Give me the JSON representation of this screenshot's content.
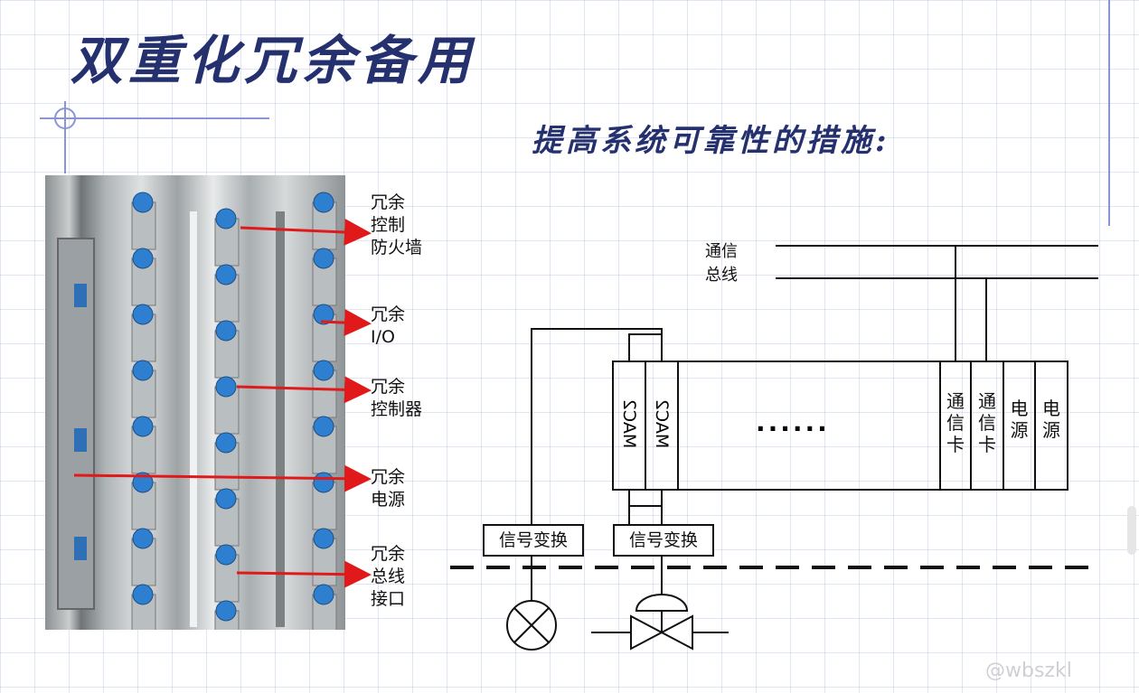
{
  "title": "双重化冗余备用",
  "subtitle": "提高系统可靠性的措施:",
  "photo_labels": [
    "冗余\n控制\n防火墙",
    "冗余\nI/O",
    "冗余\n控制器",
    "冗余\n电源",
    "冗余\n总线\n接口"
  ],
  "diagram": {
    "bus_label": "通信\n总线",
    "mac_labels": [
      "MAC2",
      "MAC2"
    ],
    "ellipsis": "······",
    "slots": [
      "通\n信\n卡",
      "通\n信\n卡",
      "电\n源",
      "电\n源"
    ],
    "signal_boxes": [
      "信号变换",
      "信号变换"
    ]
  },
  "watermark": "@wbszkl",
  "colors": {
    "title": "#25306e",
    "arrow": "#e01a1a",
    "grid": "#a5b4e1"
  }
}
